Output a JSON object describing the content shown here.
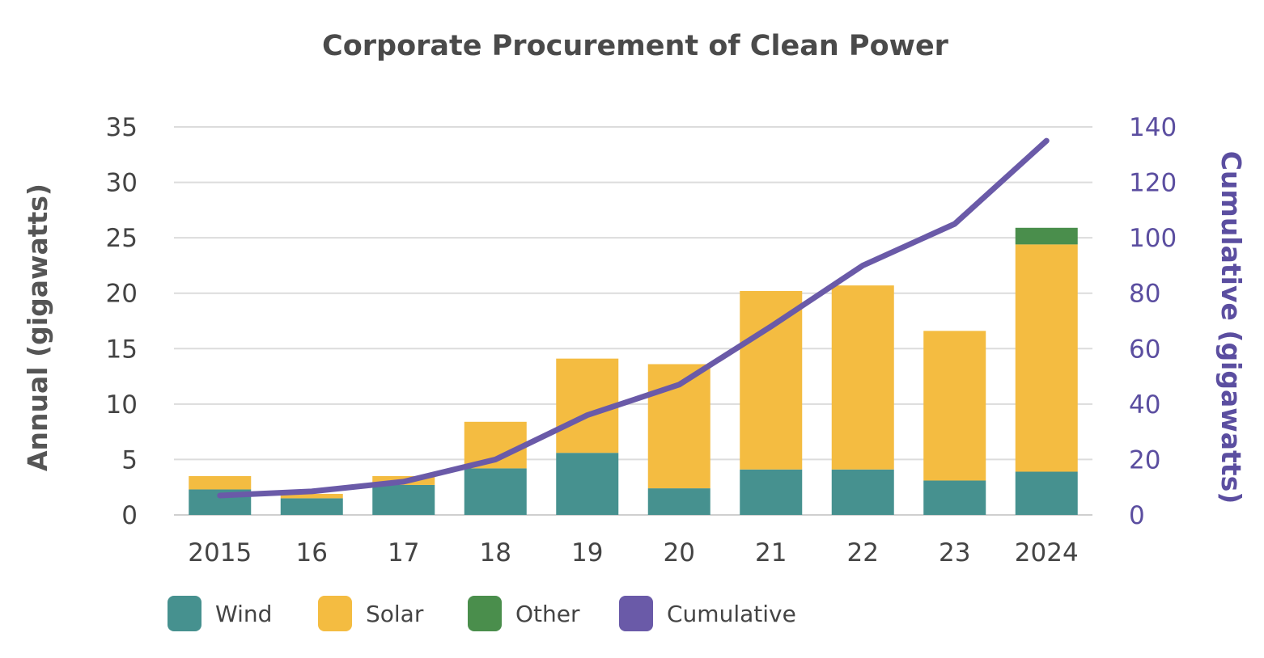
{
  "chart_data": {
    "type": "bar",
    "title": "Corporate Procurement of Clean Power",
    "ylabel": "Annual (gigawatts)",
    "y2label": "Cumulative (gigawatts)",
    "ylim": [
      0,
      35
    ],
    "y2lim": [
      0,
      140
    ],
    "yticks": [
      "0",
      "5",
      "10",
      "15",
      "20",
      "25",
      "30",
      "35"
    ],
    "y2ticks": [
      "0",
      "20",
      "40",
      "60",
      "80",
      "100",
      "120",
      "140"
    ],
    "categories": [
      "2015",
      "16",
      "17",
      "18",
      "19",
      "20",
      "21",
      "22",
      "23",
      "2024"
    ],
    "stacked": true,
    "grid": true,
    "legend_position": "bottom-left",
    "series": [
      {
        "name": "Wind",
        "color": "#46918f",
        "values": [
          2.3,
          1.5,
          2.7,
          4.2,
          5.6,
          2.4,
          4.1,
          4.1,
          3.1,
          3.9
        ]
      },
      {
        "name": "Solar",
        "color": "#f4bc41",
        "values": [
          1.2,
          0.4,
          0.8,
          4.2,
          8.5,
          11.2,
          16.1,
          16.6,
          13.5,
          20.5
        ]
      },
      {
        "name": "Other",
        "color": "#4a8e4c",
        "values": [
          0,
          0,
          0,
          0,
          0,
          0,
          0,
          0,
          0,
          1.5
        ]
      }
    ],
    "line_series": {
      "name": "Cumulative",
      "color": "#6a5aa8",
      "axis": "right",
      "values": [
        7,
        8.5,
        12,
        20,
        36,
        47,
        68,
        90,
        105,
        135
      ]
    },
    "legend": [
      {
        "label": "Wind",
        "color": "#46918f"
      },
      {
        "label": "Solar",
        "color": "#f4bc41"
      },
      {
        "label": "Other",
        "color": "#4a8e4c"
      },
      {
        "label": "Cumulative",
        "color": "#6a5aa8"
      }
    ]
  }
}
